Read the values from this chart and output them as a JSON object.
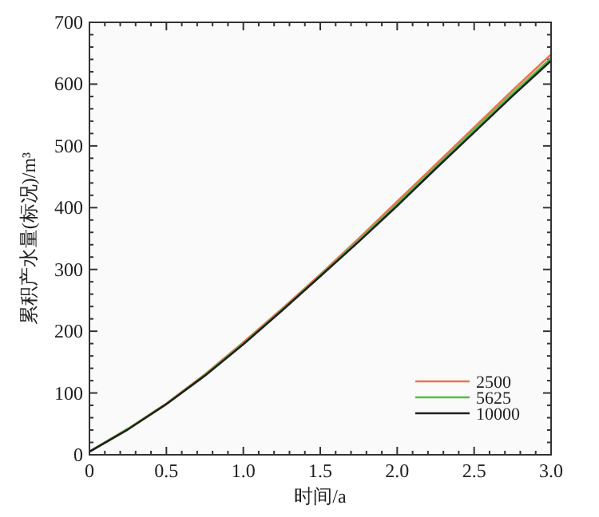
{
  "chart_data": {
    "type": "line",
    "xlabel": "时间/a",
    "ylabel": "累积产水量(标况)/m³",
    "x": [
      0,
      0.25,
      0.5,
      0.75,
      1.0,
      1.25,
      1.5,
      1.75,
      2.0,
      2.25,
      2.5,
      2.75,
      3.0
    ],
    "series": [
      {
        "name": "2500",
        "color": "#f07050",
        "values": [
          5,
          42,
          83,
          130,
          182,
          236,
          292,
          350,
          410,
          470,
          530,
          590,
          648
        ]
      },
      {
        "name": "5625",
        "color": "#50c040",
        "values": [
          5,
          42,
          82,
          129,
          180,
          234,
          290,
          347,
          406,
          466,
          526,
          585,
          642
        ]
      },
      {
        "name": "10000",
        "color": "#202020",
        "values": [
          5,
          41,
          82,
          128,
          179,
          233,
          289,
          345,
          403,
          463,
          522,
          581,
          638
        ]
      }
    ],
    "xlim": [
      0,
      3.0
    ],
    "ylim": [
      0,
      700
    ],
    "xticks": [
      0,
      {
        "value": 0.5,
        "label": "0.5"
      },
      {
        "value": 1,
        "label": "1.0"
      },
      {
        "value": 1.5,
        "label": "1.5"
      },
      {
        "value": 2,
        "label": "2.0"
      },
      {
        "value": 2.5,
        "label": "2.5"
      },
      {
        "value": 3,
        "label": "3.0"
      }
    ],
    "yticks": [
      0,
      100,
      200,
      300,
      400,
      500,
      600,
      700
    ],
    "grid": false,
    "legend": "bottom right",
    "marker": "none",
    "line_style": "solid"
  }
}
